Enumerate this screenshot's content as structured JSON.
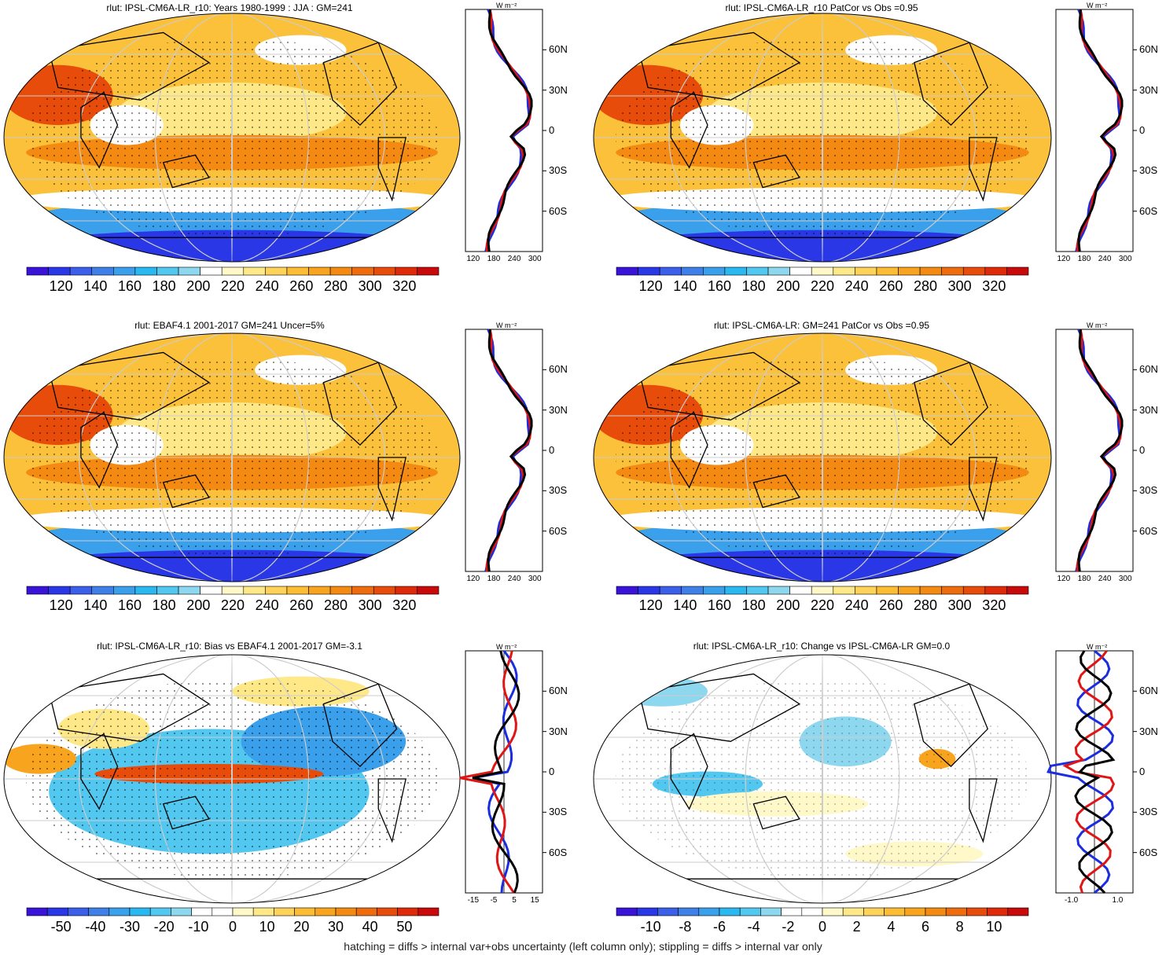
{
  "footer": "hatching = diffs > internal var+obs uncertainty (left column only); stippling = diffs > internal var only",
  "profile_unit": "W m⁻²",
  "lat_labels": [
    "60N",
    "30N",
    "0",
    "30S",
    "60S"
  ],
  "palettes": {
    "full": [
      "#3a13d8",
      "#2a37e6",
      "#3b5fe8",
      "#3f80e8",
      "#3aa0ec",
      "#2ab8f0",
      "#52c8f0",
      "#8ed8ef",
      "#ffffff",
      "#fff8c8",
      "#ffe888",
      "#ffd35a",
      "#fcbc33",
      "#f9a41f",
      "#f48a12",
      "#ee6c0d",
      "#e74c0a",
      "#de2a08",
      "#c90a0a"
    ],
    "bias": [
      "#3a13d8",
      "#2a37e6",
      "#3b5fe8",
      "#3f80e8",
      "#3aa0ec",
      "#2ab8f0",
      "#52c8f0",
      "#8ed8ef",
      "#ffffff",
      "#ffffff",
      "#fff8c8",
      "#ffe888",
      "#ffd35a",
      "#fcbc33",
      "#f9a41f",
      "#f48a12",
      "#ee6c0d",
      "#e74c0a",
      "#de2a08",
      "#c90a0a"
    ],
    "change": [
      "#3a13d8",
      "#2a37e6",
      "#3b5fe8",
      "#3f80e8",
      "#3aa0ec",
      "#2ab8f0",
      "#52c8f0",
      "#8ed8ef",
      "#ffffff",
      "#ffffff",
      "#fff8c8",
      "#ffe888",
      "#ffd35a",
      "#fcbc33",
      "#f9a41f",
      "#f48a12",
      "#ee6c0d",
      "#e74c0a",
      "#de2a08",
      "#c90a0a"
    ]
  },
  "panels": [
    {
      "id": "model-climatology",
      "title": "rlut: IPSL-CM6A-LR_r10: Years 1980-1999 : JJA : GM=241",
      "colorbar_labels": [
        "120",
        "140",
        "160",
        "180",
        "200",
        "220",
        "240",
        "260",
        "280",
        "300",
        "320"
      ],
      "profile_ticks": [
        "120",
        "180",
        "240",
        "300"
      ],
      "palette": "full"
    },
    {
      "id": "model-patcor",
      "title": "rlut: IPSL-CM6A-LR_r10 PatCor vs Obs =0.95",
      "colorbar_labels": [
        "120",
        "140",
        "160",
        "180",
        "200",
        "220",
        "240",
        "260",
        "280",
        "300",
        "320"
      ],
      "profile_ticks": [
        "120",
        "180",
        "240",
        "300"
      ],
      "palette": "full"
    },
    {
      "id": "obs-climatology",
      "title": "rlut: EBAF4.1 2001-2017 GM=241 Uncer=5%",
      "colorbar_labels": [
        "120",
        "140",
        "160",
        "180",
        "200",
        "220",
        "240",
        "260",
        "280",
        "300",
        "320"
      ],
      "profile_ticks": [
        "120",
        "180",
        "240",
        "300"
      ],
      "palette": "full"
    },
    {
      "id": "ensemble-climatology",
      "title": "rlut: IPSL-CM6A-LR: GM=241 PatCor vs Obs =0.95",
      "colorbar_labels": [
        "120",
        "140",
        "160",
        "180",
        "200",
        "220",
        "240",
        "260",
        "280",
        "300",
        "320"
      ],
      "profile_ticks": [
        "120",
        "180",
        "240",
        "300"
      ],
      "palette": "full"
    },
    {
      "id": "bias",
      "title": "rlut: IPSL-CM6A-LR_r10: Bias vs EBAF4.1 2001-2017 GM=-3.1",
      "colorbar_labels": [
        "-50",
        "-40",
        "-30",
        "-20",
        "-10",
        "0",
        "10",
        "20",
        "30",
        "40",
        "50"
      ],
      "profile_ticks": [
        "-15",
        "-5",
        "5",
        "15"
      ],
      "palette": "bias"
    },
    {
      "id": "change",
      "title": "rlut: IPSL-CM6A-LR_r10: Change vs IPSL-CM6A-LR GM=0.0",
      "colorbar_labels": [
        "-10",
        "-8",
        "-6",
        "-4",
        "-2",
        "0",
        "2",
        "4",
        "6",
        "8",
        "10"
      ],
      "profile_ticks": [
        "-1.0",
        "1.0"
      ],
      "palette": "change"
    }
  ]
}
